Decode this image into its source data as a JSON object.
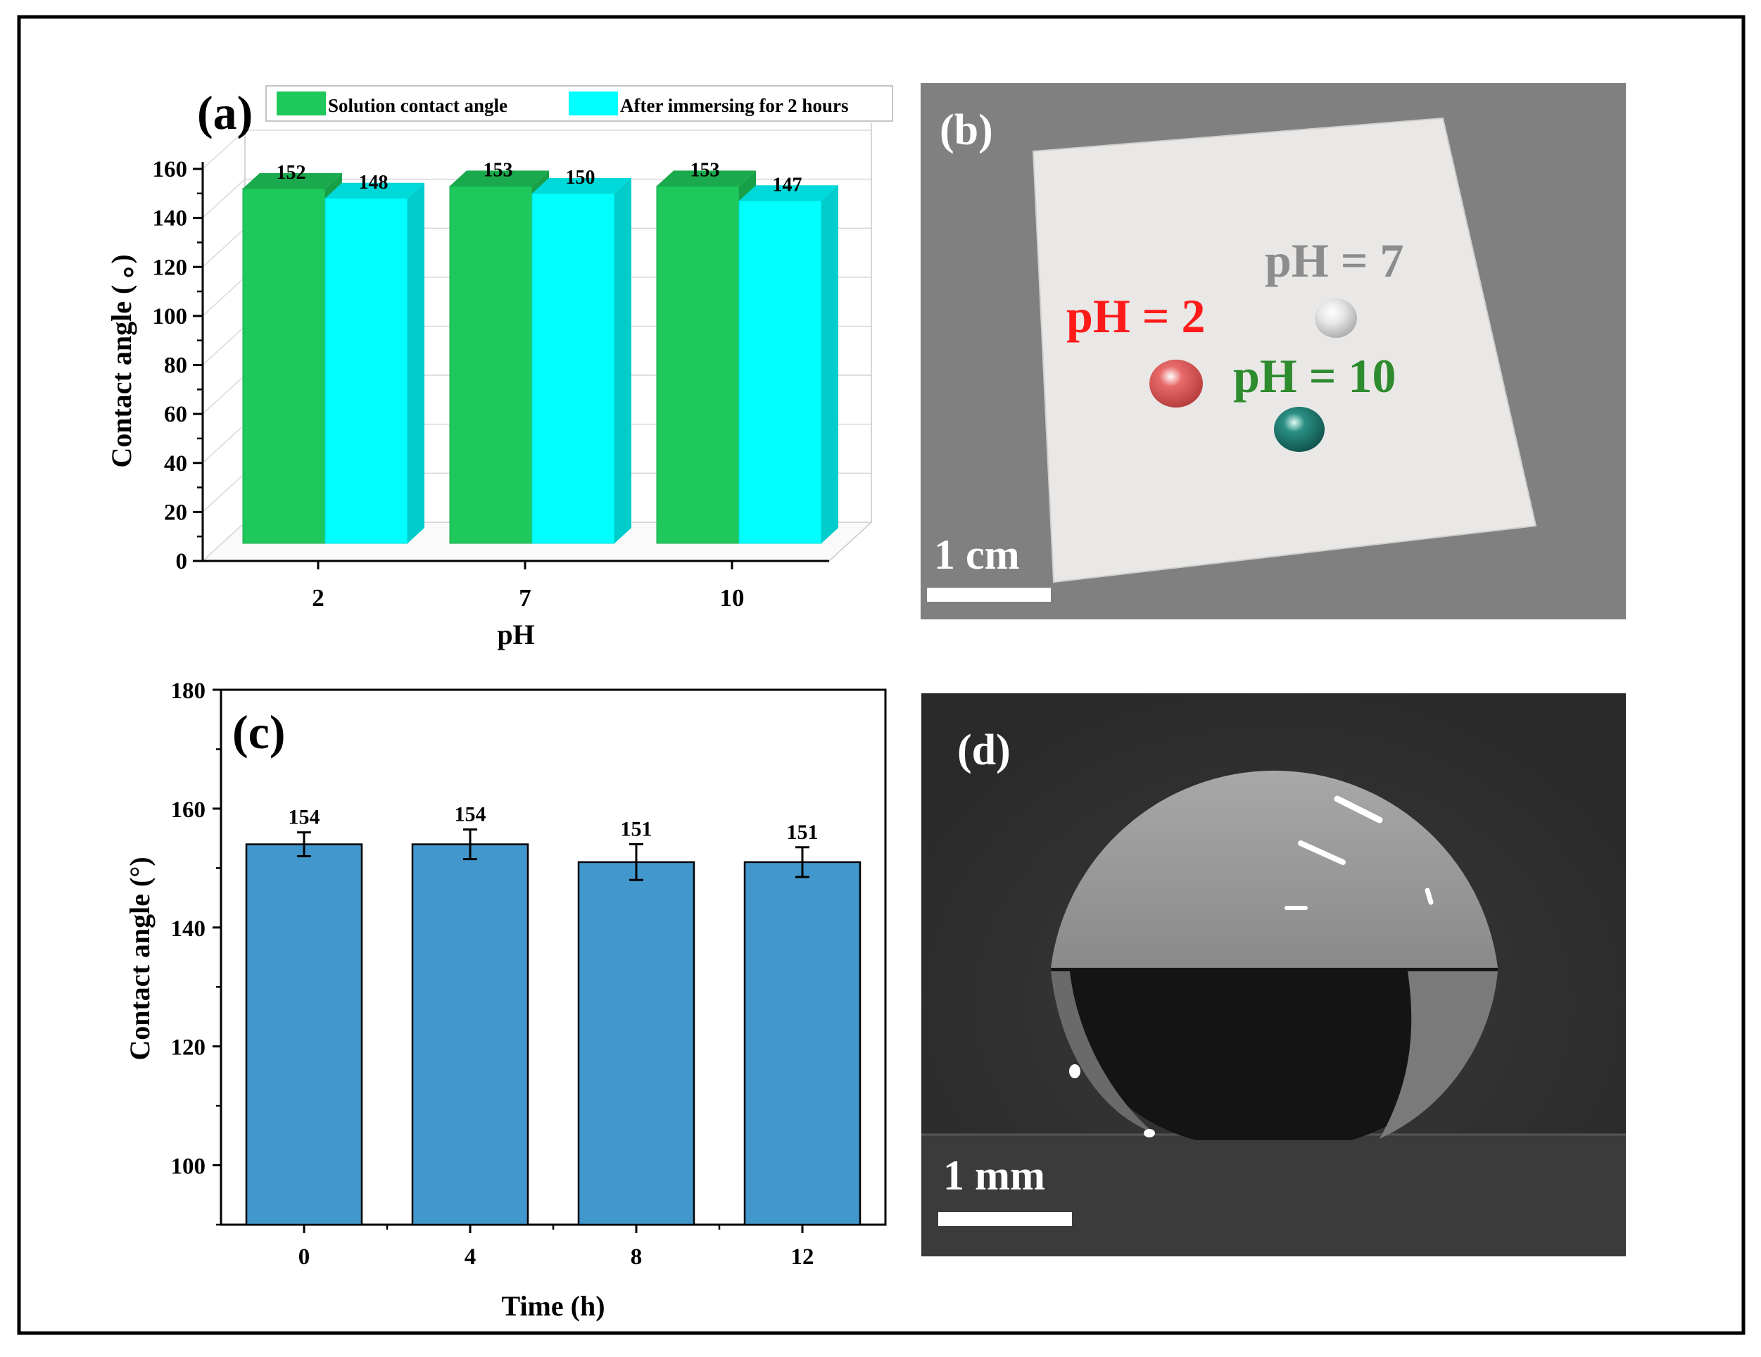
{
  "panels": {
    "a": "(a)",
    "b": "(b)",
    "c": "(c)",
    "d": "(d)"
  },
  "photo_b": {
    "labels": [
      "pH = 2",
      "pH = 7",
      "pH = 10"
    ],
    "label_colors": [
      "#ff1a1a",
      "#8c8c8c",
      "#2e8b2e"
    ],
    "droplet_colors": [
      "#e86a6a",
      "#e8e8e8",
      "#2a8f84"
    ],
    "scale_bar": "1 cm"
  },
  "photo_d": {
    "scale_bar": "1 mm"
  },
  "chart_data": [
    {
      "type": "bar",
      "panel": "a",
      "style": "3d",
      "categories": [
        "2",
        "7",
        "10"
      ],
      "series": [
        {
          "name": "Solution contact angle",
          "values": [
            152,
            153,
            153
          ],
          "color": "#1ec85a"
        },
        {
          "name": "After immersing for 2 hours",
          "values": [
            148,
            150,
            147
          ],
          "color": "#00ffff"
        }
      ],
      "data_labels": [
        [
          "152",
          "153",
          "153"
        ],
        [
          "148",
          "150",
          "147"
        ]
      ],
      "xlabel": "pH",
      "ylabel": "Contact angle (  。)",
      "ylim": [
        0,
        160
      ],
      "yticks": [
        "0",
        "20",
        "40",
        "60",
        "80",
        "100",
        "120",
        "140",
        "160"
      ],
      "grid": true,
      "legend": "top"
    },
    {
      "type": "bar",
      "panel": "c",
      "categories": [
        "0",
        "4",
        "8",
        "12"
      ],
      "series": [
        {
          "values": [
            154,
            154,
            151,
            151
          ],
          "errors": [
            2.0,
            2.5,
            3.0,
            2.5
          ],
          "color": "#4297cc"
        }
      ],
      "data_labels": [
        "154",
        "154",
        "151",
        "151"
      ],
      "xlabel": "Time (h)",
      "ylabel": "Contact angle (°)",
      "ylim": [
        90,
        180
      ],
      "yticks": [
        "100",
        "120",
        "140",
        "160",
        "180"
      ],
      "grid": false,
      "legend": "none"
    }
  ]
}
